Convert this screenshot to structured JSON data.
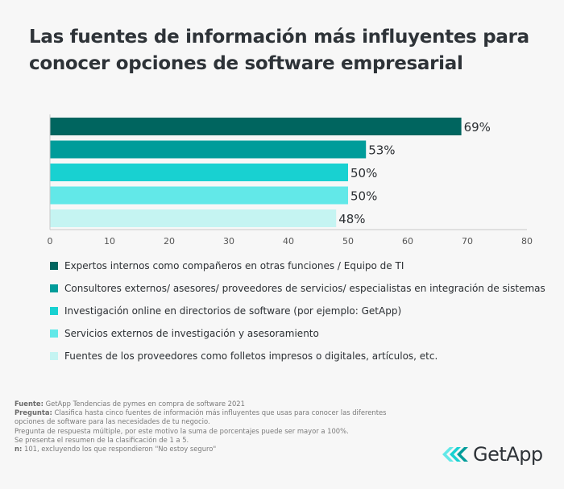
{
  "title": "Las fuentes de información más influyentes para conocer opciones de software empresarial",
  "chart_data": {
    "type": "bar",
    "orientation": "horizontal",
    "title": "Las fuentes de información más influyentes para conocer opciones de software empresarial",
    "categories": [
      "Expertos internos como compañeros en otras funciones / Equipo de TI",
      "Consultores externos/ asesores/ proveedores de servicios/ especialistas en integración de sistemas",
      "Investigación online en directorios de software (por ejemplo: GetApp)",
      "Servicios externos de investigación y asesoramiento",
      "Fuentes de los proveedores como folletos impresos o digitales, artículos, etc."
    ],
    "values": [
      69,
      53,
      50,
      50,
      48
    ],
    "data_labels": [
      "69%",
      "53%",
      "50%",
      "50%",
      "48%"
    ],
    "colors": [
      "#00655f",
      "#009c9a",
      "#18d1d1",
      "#62e8e8",
      "#c5f4f2"
    ],
    "xlim": [
      0,
      80
    ],
    "xticks": [
      "0",
      "10",
      "20",
      "30",
      "40",
      "50",
      "60",
      "70",
      "80"
    ],
    "grid": false,
    "legend_placement": "bottom"
  },
  "notes": {
    "source_label": "Fuente:",
    "source": "GetApp Tendencias de pymes en compra de software 2021",
    "question_label": "Pregunta:",
    "question": "Clasifica hasta cinco fuentes de información más influyentes que usas para conocer las diferentes",
    "question_2": "opciones de software para las necesidades de tu negocio.",
    "line3": "Pregunta de respuesta múltiple, por este motivo la suma de porcentajes puede ser mayor a 100%.",
    "line4": "Se presenta el resumen de la clasificación de 1 a 5.",
    "n_label": "n:",
    "n": "101, excluyendo los que respondieron \"No estoy seguro\""
  },
  "logo": {
    "text": "GetApp"
  }
}
